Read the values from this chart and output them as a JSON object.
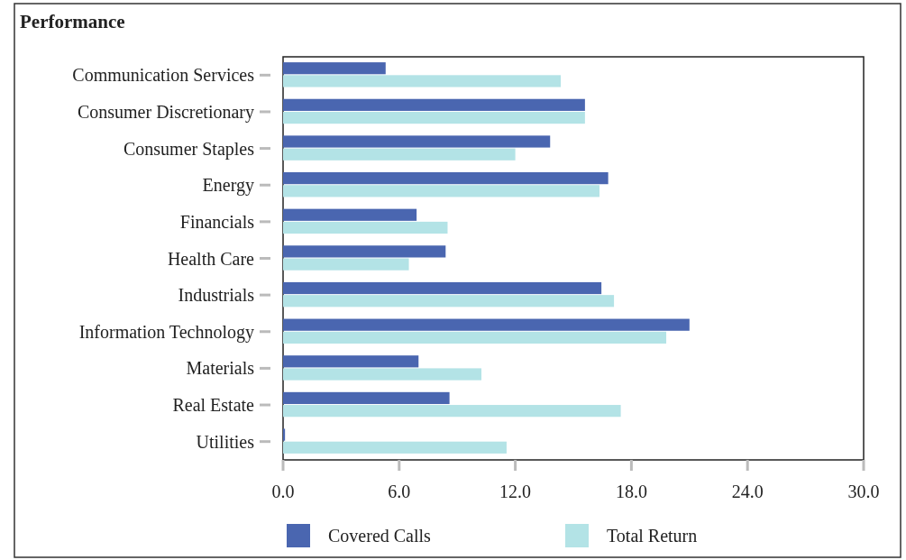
{
  "chart_data": {
    "type": "bar",
    "orientation": "horizontal",
    "title": "Performance",
    "categories": [
      "Communication Services",
      "Consumer Discretionary",
      "Consumer Staples",
      "Energy",
      "Financials",
      "Health Care",
      "Industrials",
      "Information Technology",
      "Materials",
      "Real Estate",
      "Utilities"
    ],
    "series": [
      {
        "name": "Covered Calls",
        "color": "#4a66b0",
        "values": [
          5.3,
          15.6,
          13.8,
          16.8,
          6.9,
          8.4,
          16.45,
          21.0,
          7.0,
          8.6,
          0.1
        ]
      },
      {
        "name": "Total Return",
        "color": "#b3e3e6",
        "values": [
          14.35,
          15.6,
          12.0,
          16.35,
          8.5,
          6.5,
          17.1,
          19.8,
          10.25,
          17.45,
          11.55
        ]
      }
    ],
    "xlim": [
      0,
      30
    ],
    "xticks": [
      {
        "value": 0,
        "label": "0.0"
      },
      {
        "value": 6,
        "label": "6.0"
      },
      {
        "value": 12,
        "label": "12.0"
      },
      {
        "value": 18,
        "label": "18.0"
      },
      {
        "value": 24,
        "label": "24.0"
      },
      {
        "value": 30,
        "label": "30.0"
      }
    ],
    "grid": false,
    "legend": "bottom"
  }
}
